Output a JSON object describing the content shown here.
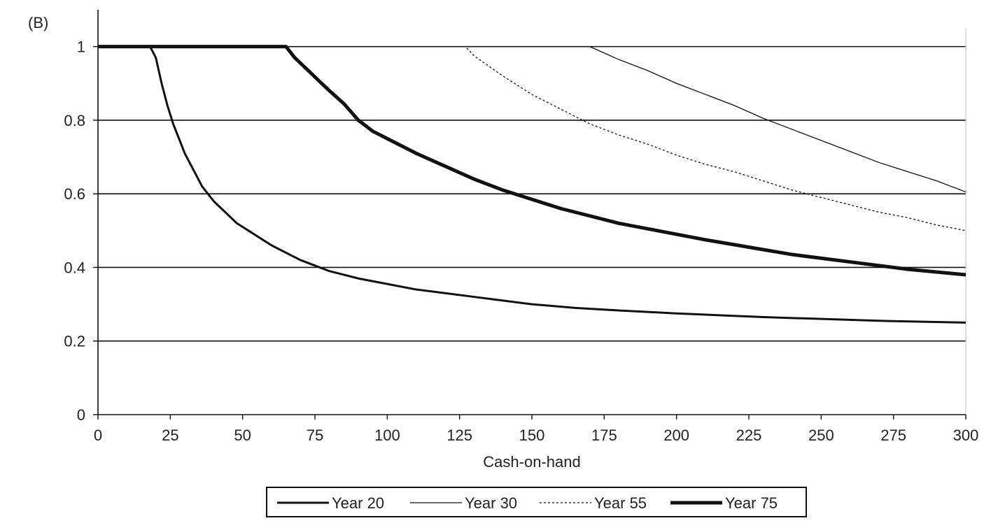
{
  "chart_data": {
    "type": "line",
    "panel_label": "(B)",
    "title": "",
    "xlabel": "Cash-on-hand",
    "ylabel": "",
    "xlim": [
      0,
      300
    ],
    "ylim": [
      0,
      1.1
    ],
    "x_ticks": [
      "0",
      "25",
      "50",
      "75",
      "100",
      "125",
      "150",
      "175",
      "200",
      "225",
      "250",
      "275",
      "300"
    ],
    "x_tick_values": [
      0,
      25,
      50,
      75,
      100,
      125,
      150,
      175,
      200,
      225,
      250,
      275,
      300
    ],
    "y_ticks": [
      "0",
      "0.2",
      "0.4",
      "0.6",
      "0.8",
      "1"
    ],
    "y_tick_values": [
      0,
      0.2,
      0.4,
      0.6,
      0.8,
      1
    ],
    "grid": "horizontal",
    "legend_position": "bottom",
    "series": [
      {
        "name": "Year 20",
        "style": "solid",
        "width": "medium",
        "points": [
          [
            0,
            1
          ],
          [
            18,
            1
          ],
          [
            20,
            0.97
          ],
          [
            22,
            0.9
          ],
          [
            24,
            0.84
          ],
          [
            26,
            0.79
          ],
          [
            28,
            0.75
          ],
          [
            30,
            0.71
          ],
          [
            32,
            0.68
          ],
          [
            34,
            0.65
          ],
          [
            36,
            0.62
          ],
          [
            38,
            0.6
          ],
          [
            40,
            0.58
          ],
          [
            44,
            0.55
          ],
          [
            48,
            0.52
          ],
          [
            52,
            0.5
          ],
          [
            56,
            0.48
          ],
          [
            60,
            0.46
          ],
          [
            65,
            0.44
          ],
          [
            70,
            0.42
          ],
          [
            75,
            0.405
          ],
          [
            80,
            0.39
          ],
          [
            90,
            0.37
          ],
          [
            100,
            0.355
          ],
          [
            110,
            0.34
          ],
          [
            120,
            0.33
          ],
          [
            130,
            0.32
          ],
          [
            140,
            0.31
          ],
          [
            150,
            0.3
          ],
          [
            165,
            0.29
          ],
          [
            180,
            0.283
          ],
          [
            200,
            0.275
          ],
          [
            230,
            0.265
          ],
          [
            270,
            0.255
          ],
          [
            300,
            0.25
          ]
        ]
      },
      {
        "name": "Year 30",
        "style": "solid",
        "width": "thin",
        "points": [
          [
            0,
            1
          ],
          [
            170,
            1
          ],
          [
            180,
            0.965
          ],
          [
            190,
            0.935
          ],
          [
            200,
            0.9
          ],
          [
            210,
            0.87
          ],
          [
            220,
            0.84
          ],
          [
            230,
            0.805
          ],
          [
            240,
            0.775
          ],
          [
            250,
            0.745
          ],
          [
            260,
            0.715
          ],
          [
            270,
            0.685
          ],
          [
            280,
            0.66
          ],
          [
            290,
            0.635
          ],
          [
            300,
            0.605
          ]
        ]
      },
      {
        "name": "Year 55",
        "style": "dotted",
        "width": "thin",
        "points": [
          [
            0,
            1
          ],
          [
            127,
            1
          ],
          [
            130,
            0.975
          ],
          [
            140,
            0.92
          ],
          [
            150,
            0.87
          ],
          [
            160,
            0.83
          ],
          [
            170,
            0.79
          ],
          [
            180,
            0.76
          ],
          [
            190,
            0.735
          ],
          [
            200,
            0.705
          ],
          [
            210,
            0.68
          ],
          [
            220,
            0.66
          ],
          [
            230,
            0.635
          ],
          [
            240,
            0.61
          ],
          [
            250,
            0.59
          ],
          [
            260,
            0.57
          ],
          [
            270,
            0.55
          ],
          [
            280,
            0.535
          ],
          [
            290,
            0.515
          ],
          [
            300,
            0.5
          ]
        ]
      },
      {
        "name": "Year 75",
        "style": "solid",
        "width": "thick",
        "points": [
          [
            0,
            1
          ],
          [
            65,
            1
          ],
          [
            68,
            0.97
          ],
          [
            72,
            0.94
          ],
          [
            76,
            0.91
          ],
          [
            80,
            0.88
          ],
          [
            85,
            0.845
          ],
          [
            90,
            0.8
          ],
          [
            95,
            0.77
          ],
          [
            100,
            0.75
          ],
          [
            110,
            0.71
          ],
          [
            120,
            0.675
          ],
          [
            130,
            0.64
          ],
          [
            140,
            0.61
          ],
          [
            150,
            0.585
          ],
          [
            160,
            0.56
          ],
          [
            170,
            0.54
          ],
          [
            180,
            0.52
          ],
          [
            190,
            0.505
          ],
          [
            200,
            0.49
          ],
          [
            210,
            0.475
          ],
          [
            225,
            0.455
          ],
          [
            240,
            0.435
          ],
          [
            260,
            0.415
          ],
          [
            280,
            0.395
          ],
          [
            300,
            0.38
          ]
        ]
      }
    ]
  }
}
